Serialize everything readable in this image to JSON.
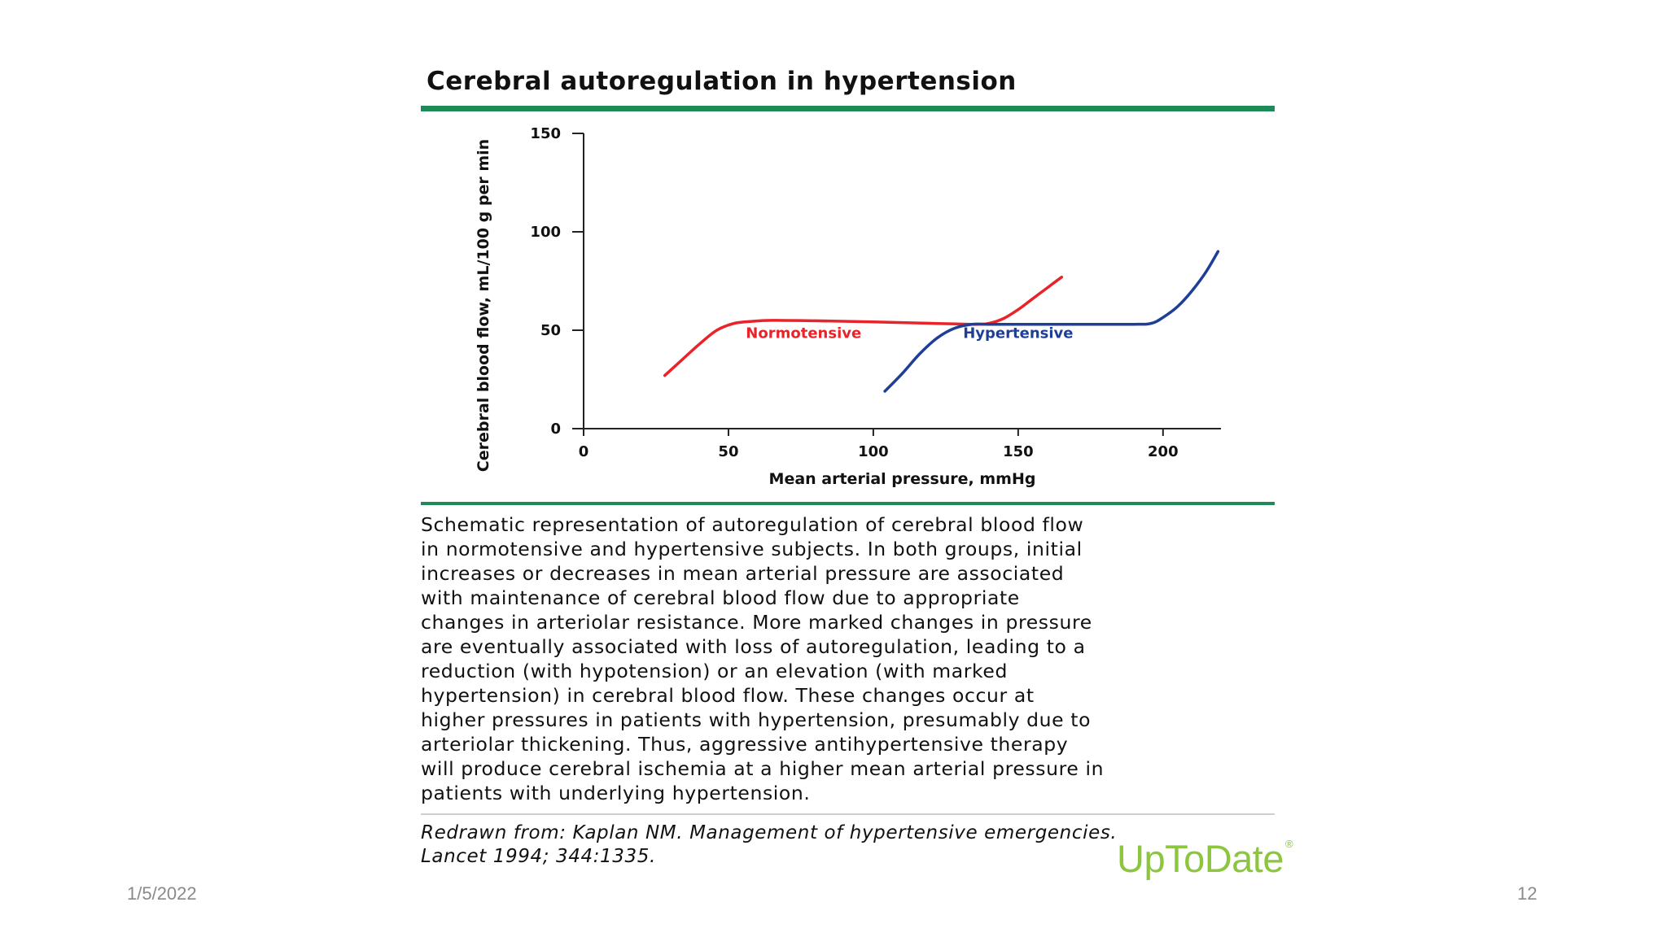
{
  "slide": {
    "date": "1/5/2022",
    "page_number": "12"
  },
  "figure": {
    "title": "Cerebral autoregulation in hypertension",
    "caption_lines": [
      "Schematic representation of autoregulation of cerebral blood flow",
      "in normotensive and hypertensive subjects. In both groups, initial",
      "increases or decreases in mean arterial pressure are associated",
      "with maintenance of cerebral blood flow due to appropriate",
      "changes in arteriolar resistance. More marked changes in pressure",
      "are eventually associated with loss of autoregulation, leading to a",
      "reduction (with hypotension) or an elevation (with marked",
      "hypertension) in cerebral blood flow. These changes occur at",
      "higher pressures in patients with hypertension, presumably due to",
      "arteriolar thickening. Thus, aggressive antihypertensive therapy",
      "will produce cerebral ischemia at a higher mean arterial pressure in",
      "patients with underlying hypertension."
    ],
    "reference_lines": [
      "Redrawn from: Kaplan NM. Management of hypertensive emergencies.",
      "Lancet 1994; 344:1335."
    ],
    "logo_text": "UpToDate",
    "logo_mark": "®",
    "accent_color": "#1e8a57",
    "logo_color": "#8cc63f"
  },
  "chart_data": {
    "type": "line",
    "xlabel": "Mean arterial pressure, mmHg",
    "ylabel": "Cerebral blood flow, mL/100 g per min",
    "xlim": [
      0,
      220
    ],
    "ylim": [
      0,
      150
    ],
    "xticks": [
      0,
      50,
      100,
      150,
      200
    ],
    "yticks": [
      0,
      50,
      100,
      150
    ],
    "grid": false,
    "series": [
      {
        "name": "Normotensive",
        "color": "#e8232a",
        "label_at": [
          56,
          46
        ],
        "x": [
          28,
          34,
          40,
          46,
          52,
          58,
          65,
          80,
          100,
          120,
          135,
          140,
          145,
          150,
          155,
          160,
          165
        ],
        "y": [
          27,
          35,
          43,
          50,
          53.5,
          54.5,
          55,
          54.8,
          54.2,
          53.5,
          53,
          53.5,
          56,
          60.5,
          66,
          71.5,
          77
        ]
      },
      {
        "name": "Hypertensive",
        "color": "#1f3f96",
        "label_at": [
          131,
          46
        ],
        "x": [
          104,
          110,
          116,
          122,
          128,
          134,
          140,
          150,
          170,
          190,
          196,
          200,
          205,
          210,
          215,
          219
        ],
        "y": [
          19,
          28,
          38,
          46,
          51,
          53,
          53,
          53,
          53,
          53,
          53.5,
          56.5,
          62,
          70,
          80,
          90
        ]
      }
    ]
  }
}
